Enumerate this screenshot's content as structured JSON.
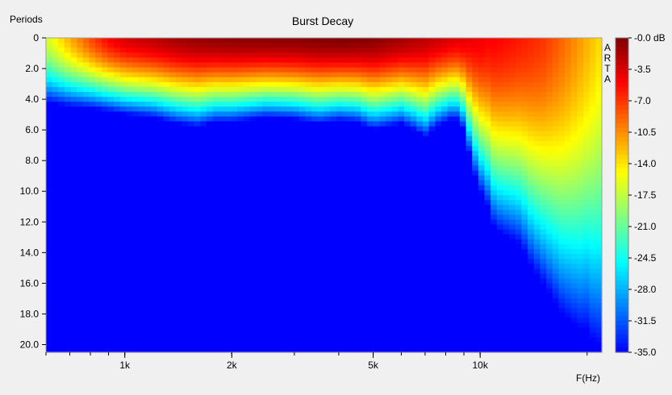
{
  "chart_data": {
    "type": "heatmap",
    "title": "Burst Decay",
    "ylabel": "Periods",
    "xlabel": "F(Hz)",
    "watermark": "ARTA",
    "x_scale": "log",
    "xlim": [
      600,
      22000
    ],
    "ylim": [
      0,
      20.5
    ],
    "x_ticks": [
      {
        "value": 1000,
        "label": "1k"
      },
      {
        "value": 2000,
        "label": "2k"
      },
      {
        "value": 5000,
        "label": "5k"
      },
      {
        "value": 10000,
        "label": "10k"
      }
    ],
    "y_ticks": [
      {
        "value": 0,
        "label": "0"
      },
      {
        "value": 2,
        "label": "2.0"
      },
      {
        "value": 4,
        "label": "4.0"
      },
      {
        "value": 6,
        "label": "6.0"
      },
      {
        "value": 8,
        "label": "8.0"
      },
      {
        "value": 10,
        "label": "10.0"
      },
      {
        "value": 12,
        "label": "12.0"
      },
      {
        "value": 14,
        "label": "14.0"
      },
      {
        "value": 16,
        "label": "16.0"
      },
      {
        "value": 18,
        "label": "18.0"
      },
      {
        "value": 20,
        "label": "20.0"
      }
    ],
    "colorbar": {
      "unit": "dB",
      "range": [
        -35,
        0
      ],
      "tick_labels": [
        "-0.0 dB",
        "-3.5",
        "-7.0",
        "-10.5",
        "-14.0",
        "-17.5",
        "-21.0",
        "-24.5",
        "-28.0",
        "-31.5",
        "-35.0"
      ],
      "colormap": [
        "#7f0000",
        "#ff0000",
        "#ff8000",
        "#ffff00",
        "#80ff80",
        "#00ffff",
        "#0080ff",
        "#0000ff"
      ]
    },
    "freq_hz": [
      600,
      700,
      800,
      900,
      1000,
      1200,
      1400,
      1600,
      1800,
      2000,
      2500,
      3000,
      3500,
      4000,
      4500,
      5000,
      5500,
      6000,
      6500,
      7000,
      7500,
      8000,
      8500,
      9000,
      9500,
      10000,
      10500,
      11000,
      12000,
      13000,
      14000,
      15000,
      16000,
      17000,
      18000,
      19000,
      20000,
      21000,
      22000
    ],
    "peak_level_db": [
      -17,
      -12,
      -8,
      -5,
      -3.5,
      -2.5,
      -1.5,
      -1,
      -0.8,
      -0.6,
      -0.5,
      -0.4,
      -0.2,
      0,
      -0.2,
      -0.5,
      -1,
      -1.5,
      -2,
      -2.5,
      -3,
      -3.5,
      -4,
      -4,
      -4.5,
      -4.5,
      -5,
      -5,
      -5.5,
      -6,
      -6.5,
      -7,
      -8,
      -9,
      -10,
      -11,
      -12,
      -13,
      -14
    ],
    "decay_edge_periods": [
      4.2,
      4.5,
      4.6,
      4.8,
      5.0,
      5.2,
      5.6,
      5.8,
      5.5,
      5.5,
      5.2,
      5.3,
      5.6,
      5.4,
      5.5,
      6.0,
      5.8,
      5.6,
      6.0,
      6.5,
      5.8,
      5.5,
      5.2,
      6.0,
      8.5,
      10.0,
      11.0,
      12.5,
      13.0,
      13.5,
      15.0,
      16.0,
      17.0,
      18.0,
      18.5,
      19.0,
      19.0,
      20.0,
      20.0
    ]
  }
}
